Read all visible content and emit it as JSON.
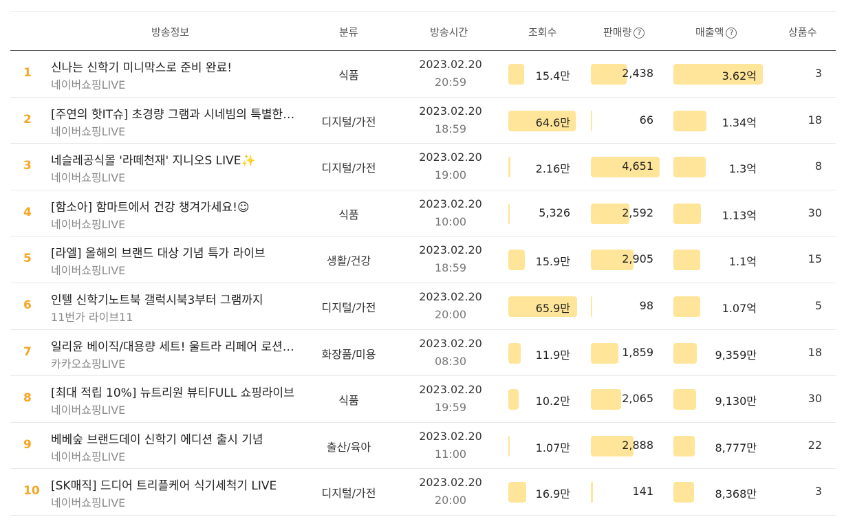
{
  "headers": {
    "broadcast_info": "방송정보",
    "category": "분류",
    "broadcast_time": "방송시간",
    "views": "조회수",
    "sales": "판매량",
    "revenue": "매출액",
    "products": "상품수"
  },
  "accent_color": "#f5a623",
  "bar_color": "#ffe599",
  "rows": [
    {
      "rank": "1",
      "title": "신나는 신학기 미니막스로 준비 완료!",
      "channel": "네이버쇼핑LIVE",
      "category": "식품",
      "date": "2023.02.20",
      "time": "20:59",
      "views": "15.4만",
      "views_level": 0.23,
      "sales": "2,438",
      "sales_level": 0.52,
      "revenue": "3.62억",
      "revenue_level": 1.0,
      "products": "3"
    },
    {
      "rank": "2",
      "title": "[주연의 핫IT슈] 초경량 그램과 시네빔의 특별한 만남",
      "channel": "네이버쇼핑LIVE",
      "category": "디지털/가전",
      "date": "2023.02.20",
      "time": "18:59",
      "views": "64.6만",
      "views_level": 0.98,
      "sales": "66",
      "sales_level": 0.01,
      "revenue": "1.34억",
      "revenue_level": 0.37,
      "products": "18"
    },
    {
      "rank": "3",
      "title": "네슬레공식몰 '라떼천재' 지니오S LIVE✨",
      "channel": "네이버쇼핑LIVE",
      "category": "디지털/가전",
      "date": "2023.02.20",
      "time": "19:00",
      "views": "2.16만",
      "views_level": 0.03,
      "sales": "4,651",
      "sales_level": 1.0,
      "revenue": "1.3억",
      "revenue_level": 0.36,
      "products": "8"
    },
    {
      "rank": "4",
      "title": "[함소아] 함마트에서 건강 챙겨가세요!☺",
      "channel": "네이버쇼핑LIVE",
      "category": "식품",
      "date": "2023.02.20",
      "time": "10:00",
      "views": "5,326",
      "views_level": 0.01,
      "sales": "2,592",
      "sales_level": 0.56,
      "revenue": "1.13억",
      "revenue_level": 0.31,
      "products": "30"
    },
    {
      "rank": "5",
      "title": "[라엘] 올해의 브랜드 대상 기념 특가 라이브",
      "channel": "네이버쇼핑LIVE",
      "category": "생활/건강",
      "date": "2023.02.20",
      "time": "18:59",
      "views": "15.9만",
      "views_level": 0.24,
      "sales": "2,905",
      "sales_level": 0.62,
      "revenue": "1.1억",
      "revenue_level": 0.3,
      "products": "15"
    },
    {
      "rank": "6",
      "title": "인텔 신학기노트북 갤럭시북3부터 그램까지",
      "channel": "11번가 라이브11",
      "category": "디지털/가전",
      "date": "2023.02.20",
      "time": "20:00",
      "views": "65.9만",
      "views_level": 1.0,
      "sales": "98",
      "sales_level": 0.02,
      "revenue": "1.07억",
      "revenue_level": 0.3,
      "products": "5"
    },
    {
      "rank": "7",
      "title": "일리윤 베이직/대용량 세트! 울트라 리페어 로션 특가",
      "channel": "카카오쇼핑LIVE",
      "category": "화장품/미용",
      "date": "2023.02.20",
      "time": "08:30",
      "views": "11.9만",
      "views_level": 0.18,
      "sales": "1,859",
      "sales_level": 0.4,
      "revenue": "9,359만",
      "revenue_level": 0.26,
      "products": "18"
    },
    {
      "rank": "8",
      "title": "[최대 적립 10%] 뉴트리원 뷰티FULL 쇼핑라이브",
      "channel": "네이버쇼핑LIVE",
      "category": "식품",
      "date": "2023.02.20",
      "time": "19:59",
      "views": "10.2만",
      "views_level": 0.15,
      "sales": "2,065",
      "sales_level": 0.44,
      "revenue": "9,130만",
      "revenue_level": 0.25,
      "products": "30"
    },
    {
      "rank": "9",
      "title": "베베숲 브랜드데이 신학기 에디션 출시 기념",
      "channel": "네이버쇼핑LIVE",
      "category": "출산/육아",
      "date": "2023.02.20",
      "time": "11:00",
      "views": "1.07만",
      "views_level": 0.02,
      "sales": "2,888",
      "sales_level": 0.62,
      "revenue": "8,777만",
      "revenue_level": 0.24,
      "products": "22"
    },
    {
      "rank": "10",
      "title": "[SK매직] 드디어 트리플케어 식기세척기 LIVE",
      "channel": "네이버쇼핑LIVE",
      "category": "디지털/가전",
      "date": "2023.02.20",
      "time": "20:00",
      "views": "16.9만",
      "views_level": 0.26,
      "sales": "141",
      "sales_level": 0.03,
      "revenue": "8,368만",
      "revenue_level": 0.23,
      "products": "3"
    }
  ]
}
